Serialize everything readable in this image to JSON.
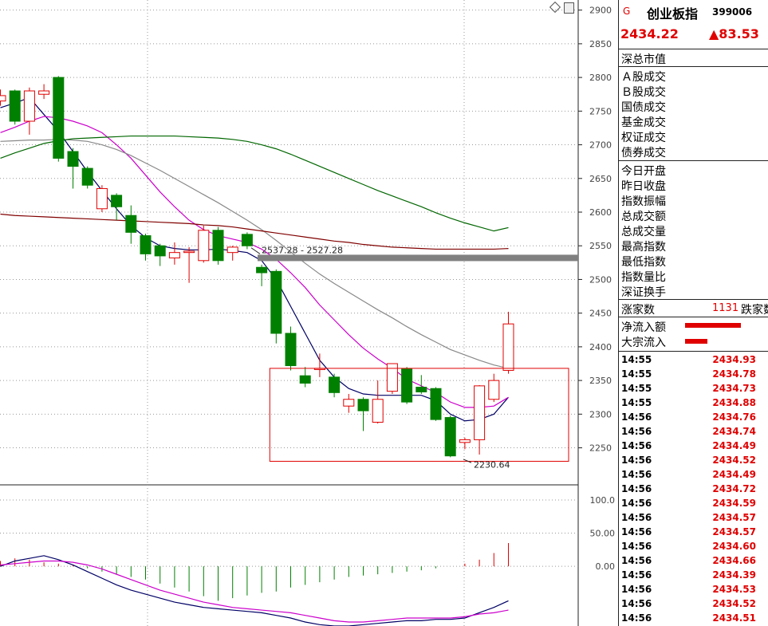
{
  "sidebar": {
    "g_marker": "G",
    "index_name": "创业板指",
    "index_code": "399006",
    "price": "2434.22",
    "change": "▲83.53",
    "market_cap_label": "深总市值",
    "turnover_labels": [
      "Ａ股成交",
      "Ｂ股成交",
      "国债成交",
      "基金成交",
      "权证成交",
      "债券成交"
    ],
    "stat_labels": [
      "今日开盘",
      "昨日收盘",
      "指数振幅",
      "总成交额",
      "总成交量",
      "最高指数",
      "最低指数",
      "指数量比",
      "深证换手"
    ],
    "advancers_label": "涨家数",
    "advancers_value": "1131",
    "decliners_label": "跌家数",
    "net_inflow_label": "净流入额",
    "block_inflow_label": "大宗流入",
    "net_inflow_ratio": 1.0,
    "block_inflow_ratio": 0.4,
    "ticks": [
      {
        "time": "14:55",
        "value": "2434.93"
      },
      {
        "time": "14:55",
        "value": "2434.78"
      },
      {
        "time": "14:55",
        "value": "2434.73"
      },
      {
        "time": "14:55",
        "value": "2434.88"
      },
      {
        "time": "14:56",
        "value": "2434.76"
      },
      {
        "time": "14:56",
        "value": "2434.74"
      },
      {
        "time": "14:56",
        "value": "2434.49"
      },
      {
        "time": "14:56",
        "value": "2434.52"
      },
      {
        "time": "14:56",
        "value": "2434.49"
      },
      {
        "time": "14:56",
        "value": "2434.72"
      },
      {
        "time": "14:56",
        "value": "2434.59"
      },
      {
        "time": "14:56",
        "value": "2434.57"
      },
      {
        "time": "14:56",
        "value": "2434.57"
      },
      {
        "time": "14:56",
        "value": "2434.60"
      },
      {
        "time": "14:56",
        "value": "2434.66"
      },
      {
        "time": "14:56",
        "value": "2434.39"
      },
      {
        "time": "14:56",
        "value": "2434.53"
      },
      {
        "time": "14:56",
        "value": "2434.52"
      },
      {
        "time": "14:56",
        "value": "2434.51"
      }
    ]
  },
  "chart_data": {
    "type": "candlestick",
    "colors": {
      "up": "#e00000",
      "down": "#008000",
      "ma1": "#000066",
      "ma2": "#cc00cc",
      "ma3": "#888888",
      "ma4": "#006600",
      "ma5": "#800000",
      "box": "#e00000",
      "band": "#808080"
    },
    "price_axis": {
      "ylim": [
        2195,
        2915
      ],
      "ticks": [
        2250,
        2300,
        2350,
        2400,
        2450,
        2500,
        2550,
        2600,
        2650,
        2700,
        2750,
        2800,
        2850,
        2900
      ]
    },
    "candles": [
      {
        "o": 2765,
        "h": 2782,
        "l": 2758,
        "c": 2773
      },
      {
        "o": 2780,
        "h": 2782,
        "l": 2730,
        "c": 2735
      },
      {
        "o": 2735,
        "h": 2785,
        "l": 2715,
        "c": 2780
      },
      {
        "o": 2775,
        "h": 2790,
        "l": 2768,
        "c": 2780
      },
      {
        "o": 2800,
        "h": 2802,
        "l": 2675,
        "c": 2680
      },
      {
        "o": 2690,
        "h": 2695,
        "l": 2635,
        "c": 2668
      },
      {
        "o": 2665,
        "h": 2668,
        "l": 2635,
        "c": 2640
      },
      {
        "o": 2605,
        "h": 2640,
        "l": 2600,
        "c": 2635
      },
      {
        "o": 2625,
        "h": 2628,
        "l": 2588,
        "c": 2608
      },
      {
        "o": 2595,
        "h": 2610,
        "l": 2553,
        "c": 2570
      },
      {
        "o": 2565,
        "h": 2568,
        "l": 2528,
        "c": 2538
      },
      {
        "o": 2550,
        "h": 2553,
        "l": 2520,
        "c": 2535
      },
      {
        "o": 2532,
        "h": 2555,
        "l": 2522,
        "c": 2540
      },
      {
        "o": 2540,
        "h": 2548,
        "l": 2495,
        "c": 2542
      },
      {
        "o": 2528,
        "h": 2580,
        "l": 2525,
        "c": 2573
      },
      {
        "o": 2573,
        "h": 2578,
        "l": 2522,
        "c": 2528
      },
      {
        "o": 2540,
        "h": 2550,
        "l": 2528,
        "c": 2548
      },
      {
        "o": 2567,
        "h": 2570,
        "l": 2545,
        "c": 2550
      },
      {
        "o": 2518,
        "h": 2522,
        "l": 2490,
        "c": 2510
      },
      {
        "o": 2512,
        "h": 2515,
        "l": 2405,
        "c": 2420
      },
      {
        "o": 2420,
        "h": 2430,
        "l": 2365,
        "c": 2372
      },
      {
        "o": 2357,
        "h": 2370,
        "l": 2340,
        "c": 2346
      },
      {
        "o": 2367,
        "h": 2390,
        "l": 2355,
        "c": 2368
      },
      {
        "o": 2355,
        "h": 2360,
        "l": 2325,
        "c": 2332
      },
      {
        "o": 2312,
        "h": 2330,
        "l": 2302,
        "c": 2322
      },
      {
        "o": 2322,
        "h": 2325,
        "l": 2275,
        "c": 2305
      },
      {
        "o": 2288,
        "h": 2350,
        "l": 2286,
        "c": 2322
      },
      {
        "o": 2334,
        "h": 2375,
        "l": 2330,
        "c": 2375
      },
      {
        "o": 2367,
        "h": 2370,
        "l": 2315,
        "c": 2318
      },
      {
        "o": 2340,
        "h": 2358,
        "l": 2330,
        "c": 2333
      },
      {
        "o": 2338,
        "h": 2340,
        "l": 2290,
        "c": 2292
      },
      {
        "o": 2295,
        "h": 2298,
        "l": 2236,
        "c": 2238
      },
      {
        "o": 2258,
        "h": 2265,
        "l": 2248,
        "c": 2262
      },
      {
        "o": 2262,
        "h": 2343,
        "l": 2240,
        "c": 2342
      },
      {
        "o": 2322,
        "h": 2360,
        "l": 2318,
        "c": 2350
      },
      {
        "o": 2365,
        "h": 2452,
        "l": 2360,
        "c": 2434
      }
    ],
    "ma_lines": [
      {
        "name": "ma1",
        "values": [
          2755,
          2762,
          2770,
          2745,
          2720,
          2690,
          2660,
          2632,
          2605,
          2580,
          2562,
          2550,
          2546,
          2544,
          2544,
          2545,
          2543,
          2540,
          2528,
          2500,
          2460,
          2420,
          2380,
          2355,
          2338,
          2330,
          2328,
          2328,
          2328,
          2328,
          2320,
          2300,
          2290,
          2292,
          2300,
          2325
        ]
      },
      {
        "name": "ma2",
        "values": [
          2718,
          2726,
          2735,
          2742,
          2740,
          2735,
          2728,
          2718,
          2700,
          2680,
          2655,
          2630,
          2608,
          2588,
          2574,
          2565,
          2560,
          2555,
          2545,
          2530,
          2510,
          2488,
          2462,
          2440,
          2418,
          2398,
          2382,
          2368,
          2352,
          2342,
          2332,
          2318,
          2310,
          2310,
          2312,
          2325
        ]
      },
      {
        "name": "ma3",
        "values": [
          2705,
          2706,
          2707,
          2707,
          2708,
          2707,
          2705,
          2700,
          2693,
          2684,
          2673,
          2662,
          2650,
          2638,
          2626,
          2614,
          2601,
          2588,
          2574,
          2558,
          2541,
          2524,
          2508,
          2494,
          2481,
          2468,
          2455,
          2443,
          2430,
          2418,
          2407,
          2396,
          2388,
          2380,
          2373,
          2368
        ]
      },
      {
        "name": "ma4",
        "values": [
          2680,
          2688,
          2695,
          2702,
          2706,
          2709,
          2710,
          2711,
          2712,
          2713,
          2713,
          2713,
          2713,
          2712,
          2711,
          2710,
          2708,
          2705,
          2700,
          2694,
          2686,
          2677,
          2668,
          2659,
          2650,
          2641,
          2632,
          2624,
          2616,
          2608,
          2599,
          2591,
          2584,
          2578,
          2572,
          2577
        ]
      },
      {
        "name": "ma5",
        "values": [
          2597,
          2595,
          2594,
          2593,
          2592,
          2591,
          2590,
          2589,
          2588,
          2587,
          2586,
          2585,
          2584,
          2583,
          2581,
          2580,
          2578,
          2575,
          2572,
          2569,
          2566,
          2563,
          2560,
          2557,
          2555,
          2552,
          2550,
          2548,
          2547,
          2546,
          2545,
          2545,
          2545,
          2545,
          2545,
          2546
        ]
      }
    ],
    "band_value": 2532,
    "box": {
      "from_index": 19,
      "to_index": 38,
      "top": 2368,
      "bottom": 2230
    },
    "annotations": [
      "2537.28 - 2527.28",
      "2230.64"
    ],
    "indicator_axis": {
      "ylim": [
        -90,
        118
      ],
      "ticks": [
        0,
        50,
        100
      ]
    },
    "indicator_tick_labels": [
      "0.00",
      "50.00",
      "100.0"
    ],
    "indicator_bars": [
      8,
      12,
      10,
      6,
      4,
      2,
      -3,
      -8,
      -12,
      -16,
      -20,
      -26,
      -32,
      -38,
      -45,
      -52,
      -48,
      -44,
      -40,
      -38,
      -32,
      -28,
      -24,
      -20,
      -16,
      -14,
      -12,
      -10,
      -8,
      -6,
      -3,
      0,
      4,
      10,
      20,
      35
    ],
    "indicator_lines": [
      {
        "name": "dif",
        "values": [
          0,
          8,
          12,
          16,
          10,
          2,
          -8,
          -18,
          -28,
          -36,
          -42,
          -48,
          -54,
          -58,
          -62,
          -64,
          -66,
          -68,
          -70,
          -74,
          -78,
          -84,
          -88,
          -90,
          -90,
          -88,
          -86,
          -84,
          -82,
          -82,
          -80,
          -80,
          -78,
          -70,
          -62,
          -52
        ]
      },
      {
        "name": "dea",
        "values": [
          2,
          4,
          6,
          8,
          8,
          6,
          2,
          -4,
          -12,
          -20,
          -28,
          -36,
          -42,
          -48,
          -54,
          -58,
          -62,
          -64,
          -66,
          -68,
          -70,
          -74,
          -78,
          -82,
          -84,
          -84,
          -82,
          -80,
          -78,
          -78,
          -78,
          -78,
          -76,
          -72,
          -70,
          -66
        ]
      }
    ]
  }
}
